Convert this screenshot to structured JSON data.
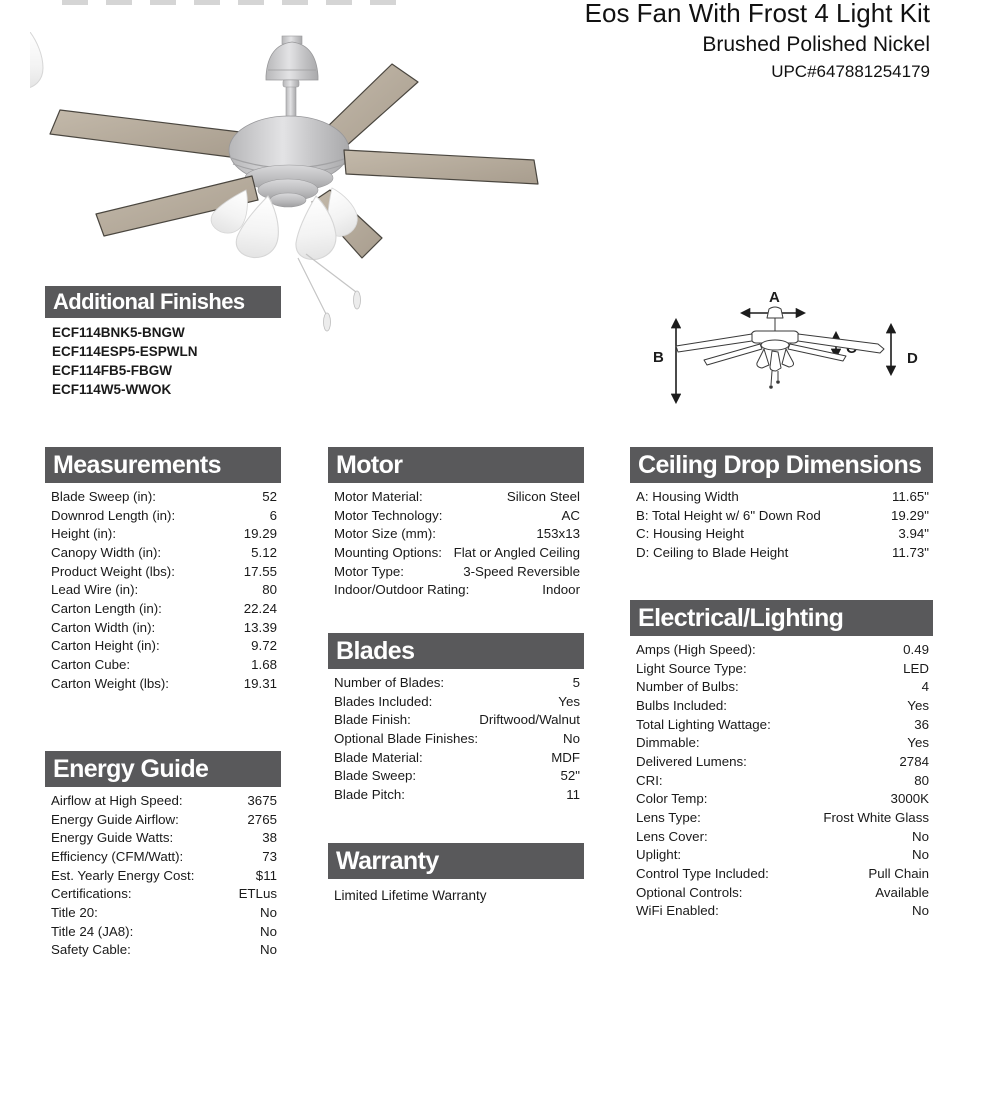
{
  "header": {
    "title": "Eos Fan With Frost 4 Light Kit",
    "subtitle": "Brushed Polished Nickel",
    "upc": "UPC#647881254179"
  },
  "colors": {
    "section_header_bar": "#59595b",
    "text": "#1a1a1a",
    "nickel": "#c9c9c9",
    "blade_wood": "#b5ab9d",
    "frost_glass": "#f6f6f6"
  },
  "additional_finishes": {
    "heading": "Additional Finishes",
    "items": [
      "ECF114BNK5-BNGW",
      "ECF114ESP5-ESPWLN",
      "ECF114FB5-FBGW",
      "ECF114W5-WWOK"
    ]
  },
  "diagram": {
    "labels": [
      "A",
      "B",
      "C",
      "D"
    ]
  },
  "sections": {
    "measurements": {
      "heading": "Measurements",
      "rows": [
        {
          "label": "Blade Sweep (in):",
          "value": "52"
        },
        {
          "label": "Downrod Length (in):",
          "value": "6"
        },
        {
          "label": "Height (in):",
          "value": "19.29"
        },
        {
          "label": "Canopy Width (in):",
          "value": "5.12"
        },
        {
          "label": "Product Weight (lbs):",
          "value": "17.55"
        },
        {
          "label": "Lead Wire (in):",
          "value": "80"
        },
        {
          "label": "Carton Length (in):",
          "value": "22.24"
        },
        {
          "label": "Carton Width (in):",
          "value": "13.39"
        },
        {
          "label": "Carton Height (in):",
          "value": "9.72"
        },
        {
          "label": "Carton Cube:",
          "value": "1.68"
        },
        {
          "label": "Carton Weight (lbs):",
          "value": "19.31"
        }
      ]
    },
    "energy_guide": {
      "heading": "Energy Guide",
      "rows": [
        {
          "label": "Airflow at High Speed:",
          "value": "3675"
        },
        {
          "label": "Energy Guide Airflow:",
          "value": "2765"
        },
        {
          "label": "Energy Guide Watts:",
          "value": "38"
        },
        {
          "label": "Efficiency (CFM/Watt):",
          "value": "73"
        },
        {
          "label": "Est. Yearly Energy Cost:",
          "value": "$11"
        },
        {
          "label": "Certifications:",
          "value": "ETLus"
        },
        {
          "label": "Title 20:",
          "value": "No"
        },
        {
          "label": "Title 24 (JA8):",
          "value": "No"
        },
        {
          "label": "Safety Cable:",
          "value": "No"
        }
      ]
    },
    "motor": {
      "heading": "Motor",
      "rows": [
        {
          "label": "Motor Material:",
          "value": "Silicon Steel"
        },
        {
          "label": "Motor Technology:",
          "value": "AC"
        },
        {
          "label": "Motor Size (mm):",
          "value": "153x13"
        },
        {
          "label": "Mounting Options:",
          "value": "Flat or Angled Ceiling"
        },
        {
          "label": "Motor Type:",
          "value": "3-Speed Reversible"
        },
        {
          "label": "Indoor/Outdoor Rating:",
          "value": "Indoor"
        }
      ]
    },
    "blades": {
      "heading": "Blades",
      "rows": [
        {
          "label": "Number of Blades:",
          "value": "5"
        },
        {
          "label": "Blades Included:",
          "value": "Yes"
        },
        {
          "label": "Blade Finish:",
          "value": "Driftwood/Walnut"
        },
        {
          "label": "Optional Blade Finishes:",
          "value": "No"
        },
        {
          "label": "Blade Material:",
          "value": "MDF"
        },
        {
          "label": "Blade Sweep:",
          "value": "52\""
        },
        {
          "label": "Blade Pitch:",
          "value": "11"
        }
      ]
    },
    "warranty": {
      "heading": "Warranty",
      "text": "Limited Lifetime Warranty"
    },
    "ceiling_drop": {
      "heading": "Ceiling Drop Dimensions",
      "rows": [
        {
          "label": "A: Housing Width",
          "value": "11.65\""
        },
        {
          "label": "B: Total Height w/ 6\" Down Rod",
          "value": "19.29\""
        },
        {
          "label": "C: Housing Height",
          "value": "3.94\""
        },
        {
          "label": "D: Ceiling to Blade Height",
          "value": "11.73\""
        }
      ]
    },
    "electrical": {
      "heading": "Electrical/Lighting",
      "rows": [
        {
          "label": "Amps (High Speed):",
          "value": "0.49"
        },
        {
          "label": "Light Source Type:",
          "value": "LED"
        },
        {
          "label": "Number of Bulbs:",
          "value": "4"
        },
        {
          "label": "Bulbs Included:",
          "value": "Yes"
        },
        {
          "label": "Total Lighting Wattage:",
          "value": "36"
        },
        {
          "label": "Dimmable:",
          "value": "Yes"
        },
        {
          "label": "Delivered Lumens:",
          "value": "2784"
        },
        {
          "label": "CRI:",
          "value": "80"
        },
        {
          "label": "Color Temp:",
          "value": "3000K"
        },
        {
          "label": "Lens Type:",
          "value": "Frost White Glass"
        },
        {
          "label": "Lens Cover:",
          "value": "No"
        },
        {
          "label": "Uplight:",
          "value": "No"
        },
        {
          "label": "Control Type Included:",
          "value": "Pull Chain"
        },
        {
          "label": "Optional Controls:",
          "value": "Available"
        },
        {
          "label": "WiFi Enabled:",
          "value": "No"
        }
      ]
    }
  }
}
